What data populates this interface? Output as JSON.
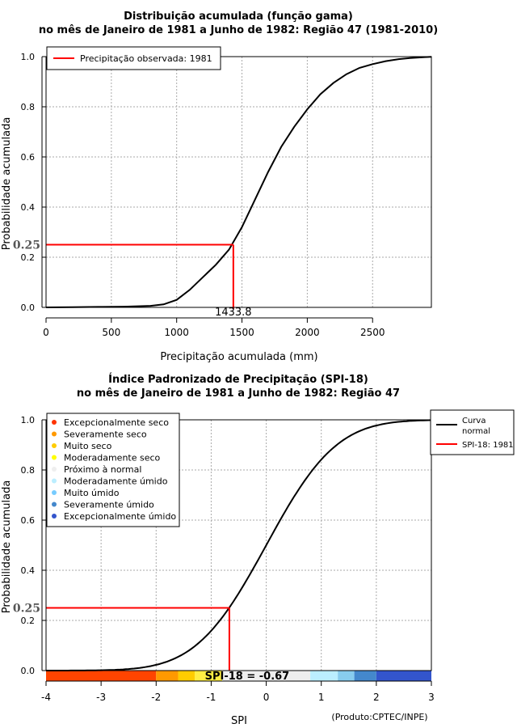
{
  "chart_data": [
    {
      "type": "line",
      "title": "Distribuição acumulada (função gama)",
      "subtitle": "no mês de Janeiro de 1981 a Junho de 1982: Região 47 (1981-2010)",
      "xlabel": "Precipitação acumulada (mm)",
      "ylabel": "Probabilidade acumulada",
      "xlim": [
        0,
        2950
      ],
      "ylim": [
        0,
        1
      ],
      "x_ticks": [
        0,
        500,
        1000,
        1500,
        2000,
        2500
      ],
      "x_tick_labels": [
        "0",
        "500",
        "1000",
        "1500",
        "2000",
        "2500"
      ],
      "y_ticks": [
        0,
        0.2,
        0.4,
        0.6,
        0.8,
        1
      ],
      "y_tick_labels": [
        "0.0",
        "0.2",
        "0.4",
        "0.6",
        "0.8",
        "1.0"
      ],
      "grid": true,
      "legend": {
        "position": "top-left",
        "entries": [
          {
            "label": "Precipitação observada: 1981",
            "color": "#ff0000"
          }
        ]
      },
      "series": [
        {
          "name": "Distribuição gama acumulada",
          "color": "#000000",
          "x": [
            0,
            200,
            400,
            600,
            800,
            900,
            1000,
            1100,
            1200,
            1300,
            1400,
            1500,
            1600,
            1700,
            1800,
            1900,
            2000,
            2100,
            2200,
            2300,
            2400,
            2500,
            2600,
            2700,
            2800,
            2900,
            2950
          ],
          "y": [
            0,
            0.001,
            0.002,
            0.003,
            0.006,
            0.012,
            0.03,
            0.07,
            0.12,
            0.17,
            0.23,
            0.32,
            0.43,
            0.54,
            0.64,
            0.72,
            0.79,
            0.85,
            0.895,
            0.93,
            0.955,
            0.97,
            0.982,
            0.99,
            0.995,
            0.998,
            0.999
          ]
        }
      ],
      "annotation": {
        "observed_value": 1433.8,
        "observed_label": "1433.8",
        "probability": 0.25,
        "probability_label": "0.25",
        "color": "#ff0000"
      }
    },
    {
      "type": "line",
      "title": "Índice Padronizado de Precipitação (SPI-18)",
      "subtitle": "no mês de Janeiro de 1981 a Junho de 1982: Região 47",
      "xlabel": "SPI",
      "ylabel": "Probabilidade acumulada",
      "xlim": [
        -4,
        3
      ],
      "ylim": [
        0,
        1
      ],
      "x_ticks": [
        -4,
        -3,
        -2,
        -1,
        0,
        1,
        2,
        3
      ],
      "x_tick_labels": [
        "-4",
        "-3",
        "-2",
        "-1",
        "0",
        "1",
        "2",
        "3"
      ],
      "y_ticks": [
        0,
        0.2,
        0.4,
        0.6,
        0.8,
        1
      ],
      "y_tick_labels": [
        "0.0",
        "0.2",
        "0.4",
        "0.6",
        "0.8",
        "1.0"
      ],
      "grid": true,
      "legend_categories": {
        "position": "top-left",
        "entries": [
          {
            "label": "Excepcionalmente seco",
            "color": "#ff3300"
          },
          {
            "label": "Severamente seco",
            "color": "#ff9900"
          },
          {
            "label": "Muito seco",
            "color": "#ffcc00"
          },
          {
            "label": "Moderadamente seco",
            "color": "#ffff00"
          },
          {
            "label": "Próximo à normal",
            "color": "#eeeeee"
          },
          {
            "label": "Moderadamente úmido",
            "color": "#bbeeff"
          },
          {
            "label": "Muito úmido",
            "color": "#77ccff"
          },
          {
            "label": "Severamente úmido",
            "color": "#4488cc"
          },
          {
            "label": "Excepcionalmente úmido",
            "color": "#3355cc"
          }
        ]
      },
      "legend_lines": {
        "position": "top-right",
        "entries": [
          {
            "label": "Curva normal",
            "label_lines": [
              "Curva",
              "normal"
            ],
            "color": "#000000"
          },
          {
            "label": "SPI-18: 1981",
            "color": "#ff0000"
          }
        ]
      },
      "category_bands": [
        {
          "from": -4,
          "to": -2,
          "color": "#ff4400"
        },
        {
          "from": -2,
          "to": -1.6,
          "color": "#ff9900"
        },
        {
          "from": -1.6,
          "to": -1.3,
          "color": "#ffcc00"
        },
        {
          "from": -1.3,
          "to": -0.8,
          "color": "#ffee44"
        },
        {
          "from": -0.8,
          "to": 0.8,
          "color": "#eeeeee"
        },
        {
          "from": 0.8,
          "to": 1.3,
          "color": "#bbeeff"
        },
        {
          "from": 1.3,
          "to": 1.6,
          "color": "#88ccee"
        },
        {
          "from": 1.6,
          "to": 2,
          "color": "#4488cc"
        },
        {
          "from": 2,
          "to": 3,
          "color": "#3355cc"
        }
      ],
      "series": [
        {
          "name": "Curva normal",
          "color": "#000000",
          "distribution": "standard normal CDF"
        }
      ],
      "annotation": {
        "spi_value": -0.67,
        "spi_label": "SPI-18 = -0.67",
        "probability": 0.25,
        "probability_label": "0.25",
        "color": "#ff0000"
      }
    }
  ],
  "credit": "(Produto:CPTEC/INPE)"
}
